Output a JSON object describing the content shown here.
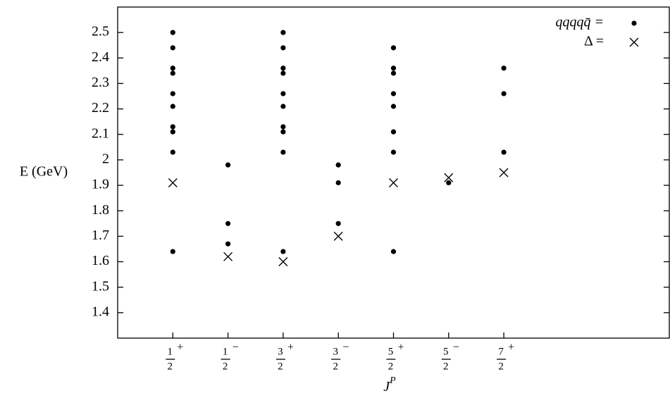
{
  "chart_data": {
    "type": "scatter",
    "y_label": "E (GeV)",
    "x_label": {
      "base": "J",
      "sup": "P"
    },
    "xlim": [
      0,
      10
    ],
    "ylim": [
      1.3,
      2.6
    ],
    "yticks": [
      1.4,
      1.5,
      1.6,
      1.7,
      1.8,
      1.9,
      {
        "value": 2.0,
        "label": "2"
      },
      2.1,
      2.2,
      2.3,
      2.4,
      2.5
    ],
    "xticks": [
      {
        "value": 1,
        "numerator": "1",
        "denominator": "2",
        "parity": "+"
      },
      {
        "value": 2,
        "numerator": "1",
        "denominator": "2",
        "parity": "−"
      },
      {
        "value": 3,
        "numerator": "3",
        "denominator": "2",
        "parity": "+"
      },
      {
        "value": 4,
        "numerator": "3",
        "denominator": "2",
        "parity": "−"
      },
      {
        "value": 5,
        "numerator": "5",
        "denominator": "2",
        "parity": "+"
      },
      {
        "value": 6,
        "numerator": "5",
        "denominator": "2",
        "parity": "−"
      },
      {
        "value": 7,
        "numerator": "7",
        "denominator": "2",
        "parity": "+"
      }
    ],
    "legend": "upper right",
    "series": [
      {
        "name": "qqqqq̄ =",
        "marker": "dot",
        "color": "#000000",
        "x": [
          1,
          1,
          1,
          1,
          1,
          1,
          1,
          1,
          1,
          1,
          2,
          2,
          2,
          3,
          3,
          3,
          3,
          3,
          3,
          3,
          3,
          3,
          3,
          4,
          4,
          4,
          5,
          5,
          5,
          5,
          5,
          5,
          5,
          5,
          6,
          7,
          7,
          7
        ],
        "values": [
          2.5,
          2.44,
          2.36,
          2.34,
          2.26,
          2.21,
          2.13,
          2.11,
          2.03,
          1.64,
          1.98,
          1.75,
          1.67,
          2.5,
          2.44,
          2.36,
          2.34,
          2.26,
          2.21,
          2.13,
          2.11,
          2.03,
          1.64,
          1.98,
          1.91,
          1.75,
          2.44,
          2.36,
          2.34,
          2.26,
          2.21,
          2.11,
          2.03,
          1.64,
          1.91,
          2.36,
          2.26,
          2.03
        ]
      },
      {
        "name": "Δ =",
        "marker": "cross",
        "color": "#000000",
        "x": [
          1,
          2,
          3,
          4,
          5,
          6,
          7
        ],
        "values": [
          1.91,
          1.62,
          1.6,
          1.7,
          1.91,
          1.93,
          1.95
        ]
      }
    ]
  }
}
